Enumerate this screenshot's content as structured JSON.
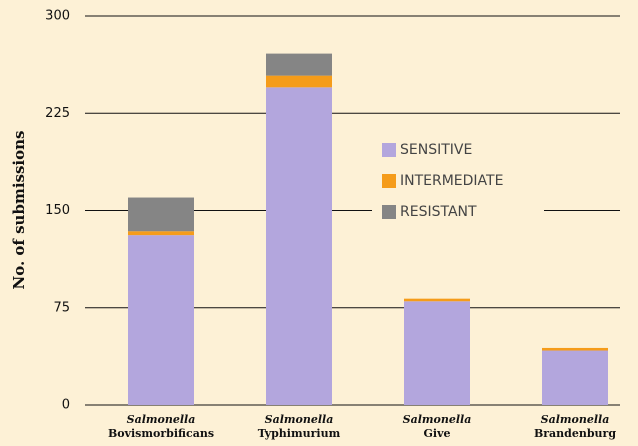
{
  "chart_data": {
    "type": "stacked_bar",
    "y_label": "No. of submissions",
    "categories": [
      "Salmonella Bovismorbificans",
      "Salmonella Typhimurium",
      "Salmonella Give",
      "Salmonella Brandenburg"
    ],
    "series": [
      {
        "name": "SENSITIVE",
        "color": "#b3a6dd",
        "values": [
          131,
          245,
          80,
          42
        ]
      },
      {
        "name": "INTERMEDIATE",
        "color": "#f59c1a",
        "values": [
          3,
          9,
          2,
          2
        ]
      },
      {
        "name": "RESISTANT",
        "color": "#858585",
        "values": [
          26,
          17,
          0,
          0
        ]
      }
    ],
    "ylim": [
      0,
      300
    ],
    "yticks": [
      0,
      75,
      150,
      225,
      300
    ],
    "grid": true
  }
}
